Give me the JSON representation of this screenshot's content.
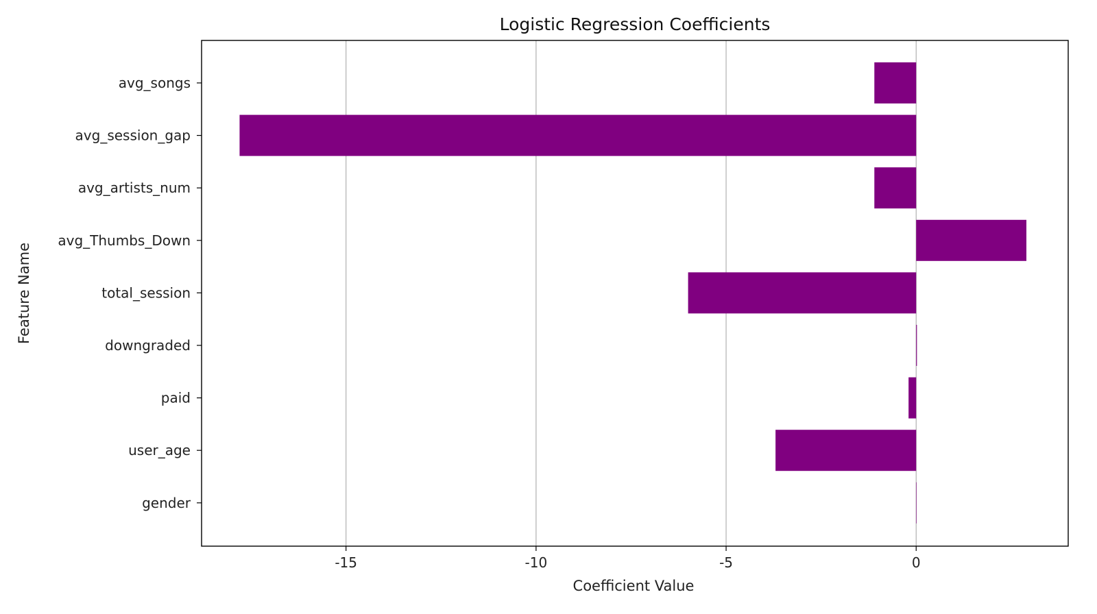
{
  "chart_data": {
    "type": "bar",
    "orientation": "horizontal",
    "title": "Logistic Regression Coefficients",
    "xlabel": "Coefficient Value",
    "ylabel": "Feature Name",
    "categories": [
      "avg_songs",
      "avg_session_gap",
      "avg_artists_num",
      "avg_Thumbs_Down",
      "total_session",
      "downgraded",
      "paid",
      "user_age",
      "gender"
    ],
    "values": [
      -1.1,
      -17.8,
      -1.1,
      2.9,
      -6.0,
      0.02,
      -0.2,
      -3.7,
      0.0
    ],
    "xlim": [
      -18.8,
      4.0
    ],
    "xticks": [
      -15,
      -10,
      -5,
      0
    ],
    "xtick_labels": [
      "-15",
      "-10",
      "-5",
      "0"
    ],
    "grid": "x",
    "bar_color": "#800080",
    "grid_color": "#b0b0b0"
  }
}
